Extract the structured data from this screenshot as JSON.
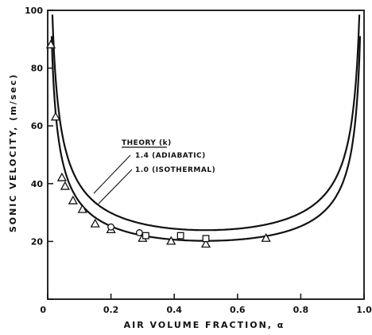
{
  "chart_data": {
    "type": "scatter",
    "xlabel": "AIR VOLUME FRACTION, α",
    "ylabel": "SONIC VELOCITY, (m/sec)",
    "xlim": [
      0,
      1.0
    ],
    "ylim": [
      0,
      100
    ],
    "x_ticks": [
      {
        "value": 0,
        "label": "0"
      },
      {
        "value": 0.2,
        "label": "0.2"
      },
      {
        "value": 0.4,
        "label": "0.4"
      },
      {
        "value": 0.6,
        "label": "0.6"
      },
      {
        "value": 0.8,
        "label": "0.8"
      },
      {
        "value": 1.0,
        "label": "1.0"
      }
    ],
    "y_ticks": [
      {
        "value": 0,
        "label": ""
      },
      {
        "value": 20,
        "label": "20"
      },
      {
        "value": 40,
        "label": "40"
      },
      {
        "value": 60,
        "label": "60"
      },
      {
        "value": 80,
        "label": "80"
      },
      {
        "value": 100,
        "label": "100"
      }
    ],
    "legend": {
      "title": "THEORY (k)",
      "entries": [
        "1.4 (ADIABATIC)",
        "1.0 (ISOTHERMAL)"
      ]
    },
    "theory_curves": [
      {
        "label": "1.4 (ADIABATIC)",
        "k": 1.4
      },
      {
        "label": "1.0 (ISOTHERMAL)",
        "k": 1.0
      }
    ],
    "series": [
      {
        "marker": "triangle",
        "points": [
          [
            0.01,
            88
          ],
          [
            0.025,
            63
          ],
          [
            0.045,
            42
          ],
          [
            0.055,
            39
          ],
          [
            0.08,
            34
          ],
          [
            0.11,
            31
          ],
          [
            0.15,
            26
          ],
          [
            0.2,
            24
          ],
          [
            0.3,
            21
          ],
          [
            0.39,
            20
          ],
          [
            0.5,
            19
          ],
          [
            0.69,
            21
          ]
        ]
      },
      {
        "marker": "circle",
        "points": [
          [
            0.2,
            25
          ],
          [
            0.29,
            23
          ]
        ]
      },
      {
        "marker": "square",
        "points": [
          [
            0.31,
            22
          ],
          [
            0.42,
            22
          ],
          [
            0.5,
            21
          ]
        ]
      }
    ],
    "grid": false,
    "legend_position": "center-left"
  }
}
